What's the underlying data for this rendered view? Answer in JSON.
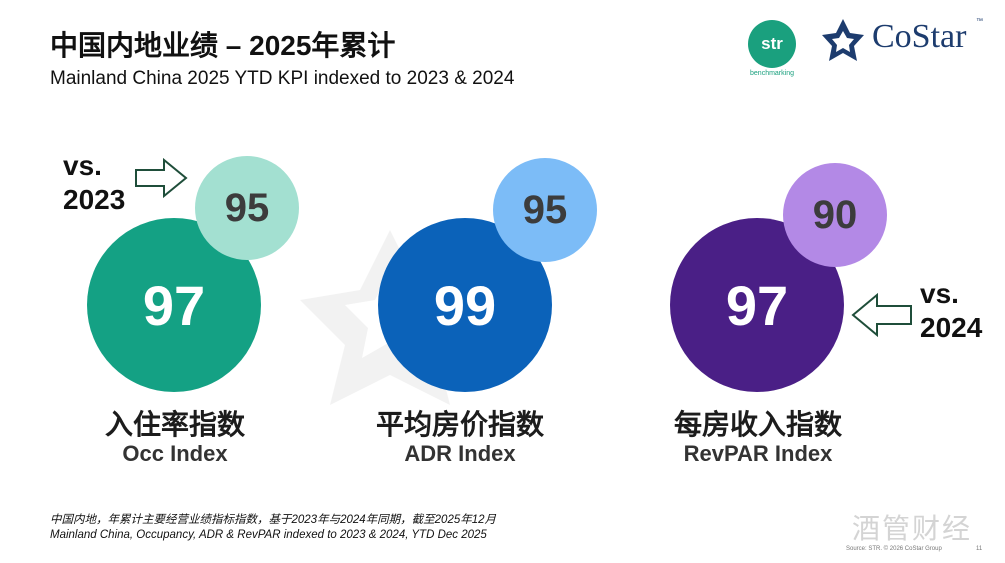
{
  "header": {
    "title": "中国内地业绩 – 2025年累计",
    "subtitle": "Mainland China 2025 YTD KPI indexed to 2023 & 2024"
  },
  "logos": {
    "str_text": "str",
    "str_sub": "benchmarking",
    "costar_text": "CoStar",
    "costar_tm": "™"
  },
  "comparisons": {
    "vs_2023": {
      "vs": "vs.",
      "year": "2023"
    },
    "vs_2024": {
      "vs": "vs.",
      "year": "2024"
    }
  },
  "kpis": [
    {
      "label_cn": "入住率指数",
      "label_en": "Occ Index",
      "vs_2024": "97",
      "vs_2023": "95",
      "color_big": "#14a184",
      "color_small": "#a3e0d1"
    },
    {
      "label_cn": "平均房价指数",
      "label_en": "ADR Index",
      "vs_2024": "99",
      "vs_2023": "95",
      "color_big": "#0b62b9",
      "color_small": "#7cbcf7"
    },
    {
      "label_cn": "每房收入指数",
      "label_en": "RevPAR Index",
      "vs_2024": "97",
      "vs_2023": "90",
      "color_big": "#4a1f86",
      "color_small": "#b389e6"
    }
  ],
  "footer": {
    "note_cn": "中国内地，年累计主要经营业绩指标指数，基于2023年与2024年同期，截至2025年12月",
    "note_en": "Mainland China, Occupancy, ADR & RevPAR indexed to 2023 & 2024, YTD Dec 2025",
    "watermark_cn": "酒管财经",
    "source": "Source: STR. © 2026 CoStar Group",
    "page_number": "11"
  }
}
